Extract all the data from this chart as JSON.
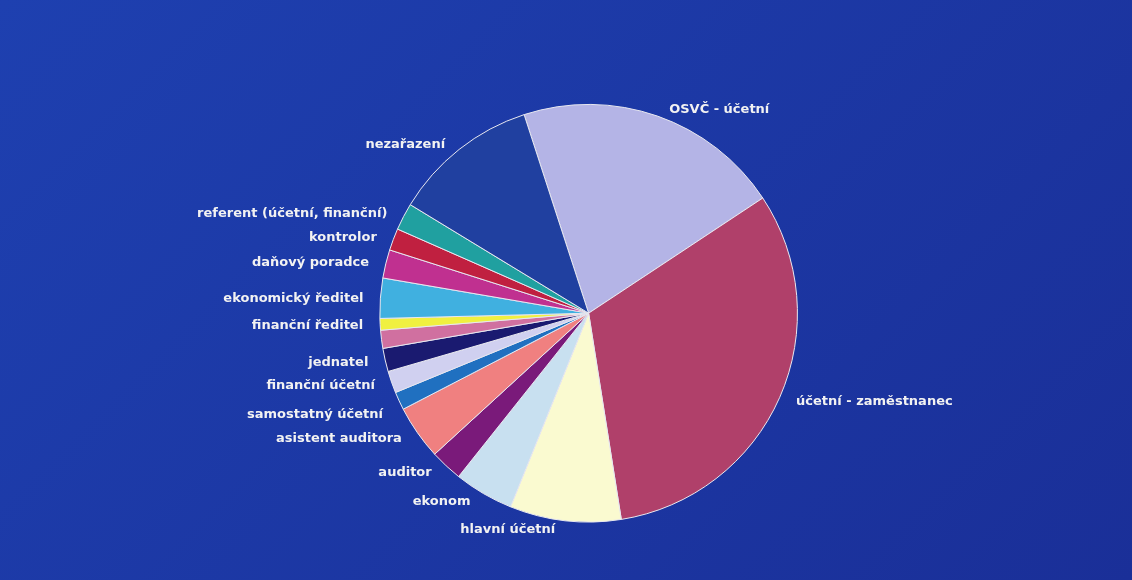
{
  "chart_data": {
    "type": "pie",
    "categories": [
      "OSVČ - účetní",
      "účetní - zaměstnanec",
      "hlavní účetní",
      "ekonom",
      "auditor",
      "asistent auditora",
      "samostatný účetní",
      "finanční účetní",
      "jednatel",
      null,
      "finanční ředitel",
      "ekonomický ředitel",
      "daňový poradce",
      "kontrolor",
      "referent (účetní, finanční)",
      "nezařazení"
    ],
    "values": [
      20.7,
      31.8,
      8.6,
      4.6,
      2.5,
      4.2,
      1.4,
      1.7,
      1.8,
      1.4,
      0.9,
      3.1,
      2.2,
      1.7,
      2.1,
      11.3
    ],
    "colors": [
      "#b4b4e6",
      "#b0406a",
      "#fafad0",
      "#c8e0f0",
      "#7a1a7a",
      "#f08080",
      "#2070c0",
      "#d0d0f0",
      "#1a1a70",
      "#d070a0",
      "#f0f040",
      "#40b0e0",
      "#c03090",
      "#c02040",
      "#20a0a0",
      "#2040a0"
    ],
    "legend": false
  }
}
